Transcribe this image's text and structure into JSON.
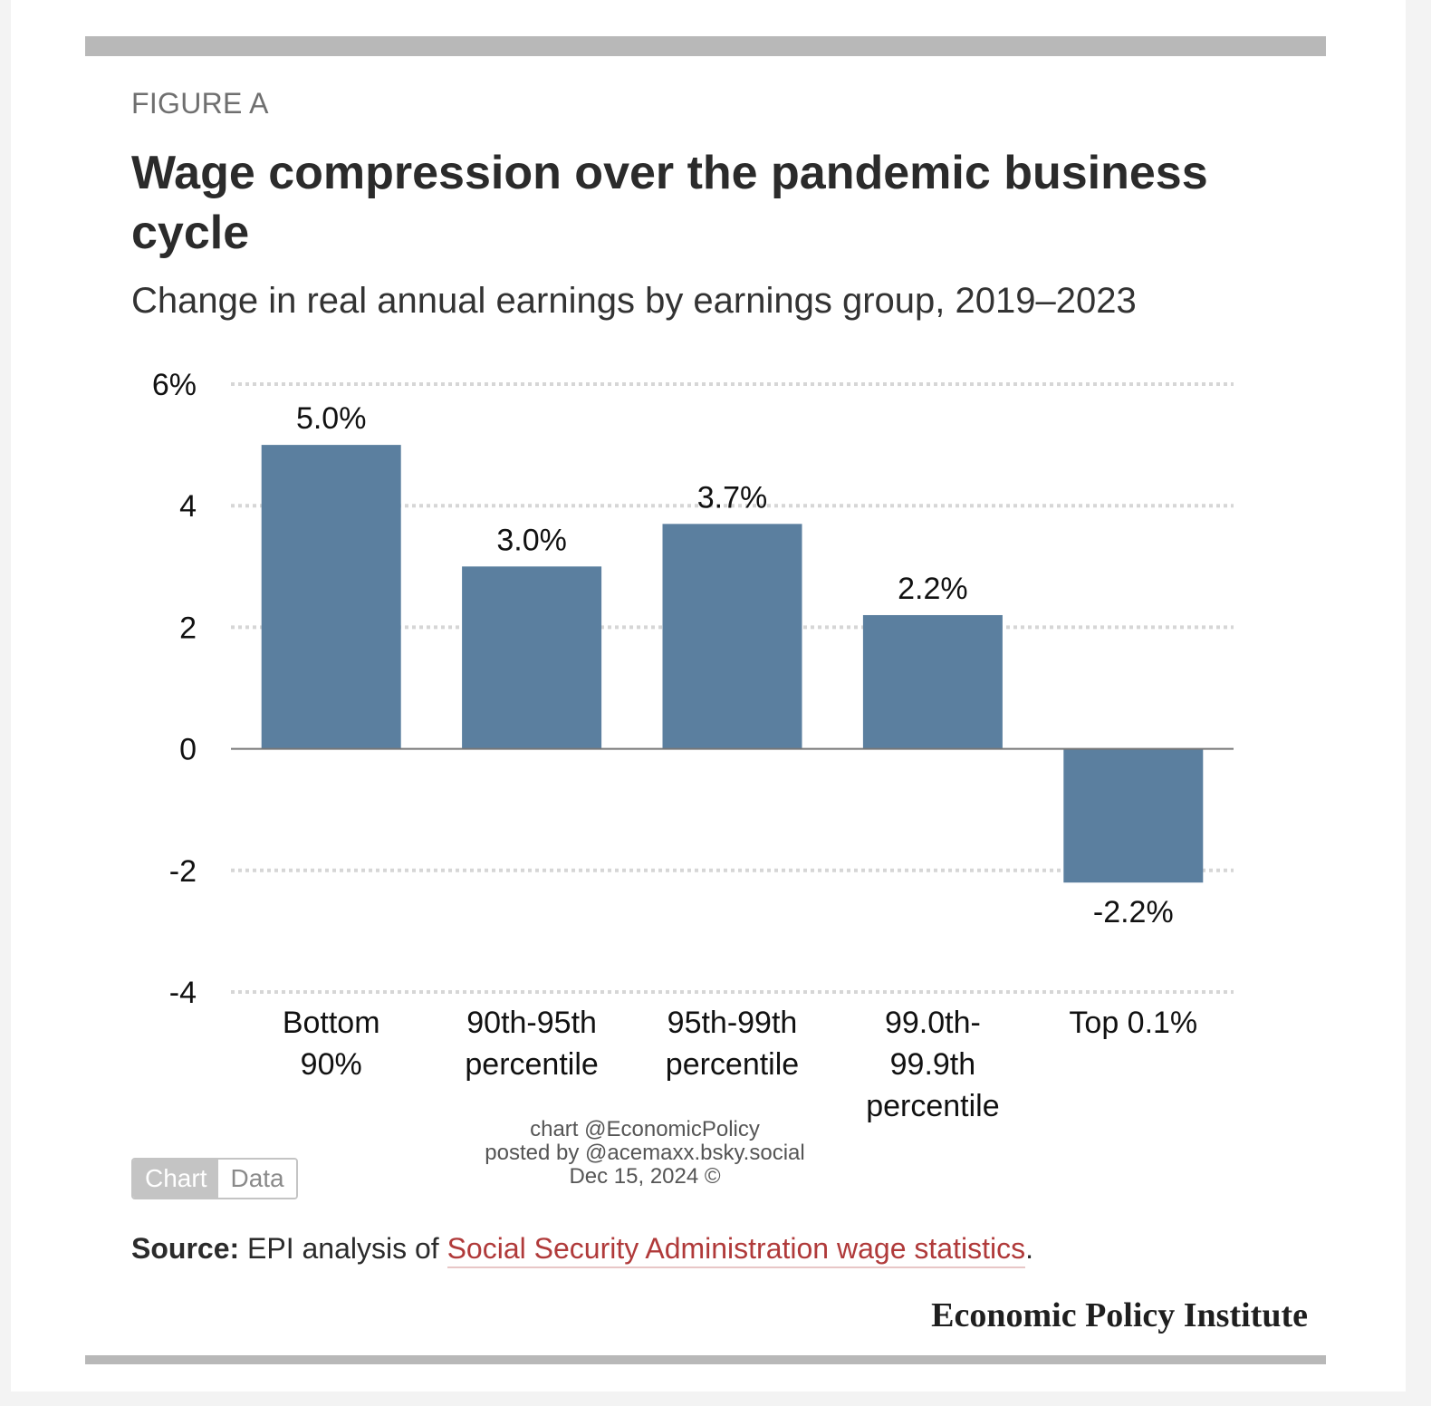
{
  "figure_label": "FIGURE A",
  "title": "Wage compression over the pandemic business cycle",
  "subtitle": "Change in real annual earnings by earnings group, 2019–2023",
  "chart_data": {
    "type": "bar",
    "categories": [
      [
        "Bottom",
        "90%"
      ],
      [
        "90th-95th",
        "percentile"
      ],
      [
        "95th-99th",
        "percentile"
      ],
      [
        "99.0th-",
        "99.9th",
        "percentile"
      ],
      [
        "Top 0.1%"
      ]
    ],
    "values": [
      5.0,
      3.0,
      3.7,
      2.2,
      -2.2
    ],
    "data_labels": [
      "5.0%",
      "3.0%",
      "3.7%",
      "2.2%",
      "-2.2%"
    ],
    "ylim": [
      -4,
      6
    ],
    "yticks": [
      6,
      4,
      2,
      0,
      -2,
      -4
    ],
    "ytick_labels": [
      "6%",
      "4",
      "2",
      "0",
      "-2",
      "-4"
    ],
    "grid": "dotted horizontal",
    "bar_color": "#5b7f9f"
  },
  "credit": {
    "line1": "chart @EconomicPolicy",
    "line2": "posted by @acemaxx.bsky.social",
    "line3": "Dec 15, 2024 ©"
  },
  "toggle": {
    "chart_label": "Chart",
    "data_label": "Data"
  },
  "source": {
    "label": "Source:",
    "text": " EPI analysis of ",
    "link_text": "Social Security Administration wage statistics",
    "end": "."
  },
  "brand": "Economic Policy Institute",
  "colors": {
    "accent_link": "#b03a3a",
    "rule": "#b8b8b8"
  }
}
